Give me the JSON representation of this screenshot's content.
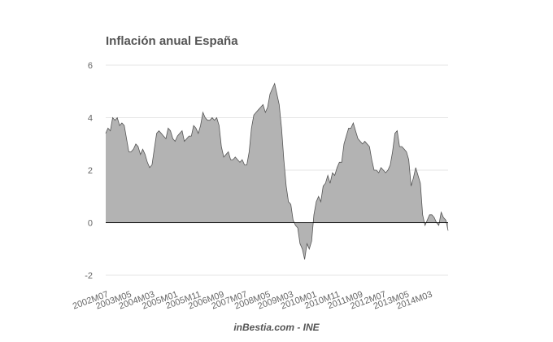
{
  "chart_data": {
    "type": "area",
    "title": "Inflación anual España",
    "source": "inBestia.com - INE",
    "xlabel": "",
    "ylabel": "",
    "ylim": [
      -2,
      6
    ],
    "y_ticks": [
      -2,
      0,
      2,
      4,
      6
    ],
    "x_tick_labels": [
      "2002M07",
      "2003M05",
      "2004M03",
      "2005M01",
      "2005M11",
      "2006M09",
      "2007M07",
      "2008M05",
      "2009M03",
      "2010M01",
      "2010M11",
      "2011M09",
      "2012M07",
      "2013M05",
      "2014M03"
    ],
    "grid": true,
    "legend": "none",
    "colors": {
      "fill": "#b3b3b3",
      "line": "#555555",
      "grid": "#e6e6e6",
      "zero_line": "#000000"
    },
    "series": [
      {
        "x_start": "2002M07",
        "frequency": "monthly",
        "values": [
          3.4,
          3.6,
          3.5,
          4.0,
          3.9,
          4.0,
          3.7,
          3.8,
          3.7,
          3.2,
          2.7,
          2.7,
          2.8,
          3.0,
          2.9,
          2.6,
          2.8,
          2.6,
          2.3,
          2.1,
          2.2,
          2.8,
          3.4,
          3.5,
          3.4,
          3.3,
          3.2,
          3.6,
          3.5,
          3.2,
          3.1,
          3.3,
          3.4,
          3.5,
          3.1,
          3.2,
          3.3,
          3.3,
          3.7,
          3.6,
          3.4,
          3.7,
          4.2,
          4.0,
          3.9,
          3.9,
          4.0,
          3.9,
          4.0,
          3.7,
          2.9,
          2.5,
          2.6,
          2.7,
          2.4,
          2.4,
          2.5,
          2.4,
          2.3,
          2.4,
          2.2,
          2.2,
          2.7,
          3.6,
          4.1,
          4.2,
          4.3,
          4.4,
          4.5,
          4.2,
          4.4,
          4.9,
          5.1,
          5.3,
          4.9,
          4.5,
          3.6,
          2.4,
          1.4,
          0.8,
          0.7,
          0.1,
          -0.1,
          -0.2,
          -0.8,
          -1.0,
          -1.4,
          -0.8,
          -1.0,
          -0.7,
          0.3,
          0.8,
          1.0,
          0.8,
          1.4,
          1.5,
          1.8,
          1.5,
          1.9,
          1.8,
          2.1,
          2.3,
          2.3,
          3.0,
          3.3,
          3.6,
          3.6,
          3.8,
          3.5,
          3.2,
          3.1,
          3.0,
          3.1,
          3.0,
          2.9,
          2.4,
          2.0,
          2.0,
          1.9,
          2.1,
          2.0,
          1.9,
          2.0,
          2.2,
          2.7,
          3.4,
          3.5,
          2.9,
          2.9,
          2.8,
          2.7,
          2.4,
          1.4,
          1.7,
          2.1,
          1.8,
          1.5,
          0.3,
          -0.1,
          0.1,
          0.3,
          0.3,
          0.2,
          0.0,
          -0.1,
          0.4,
          0.2,
          0.1,
          -0.3
        ]
      }
    ]
  }
}
